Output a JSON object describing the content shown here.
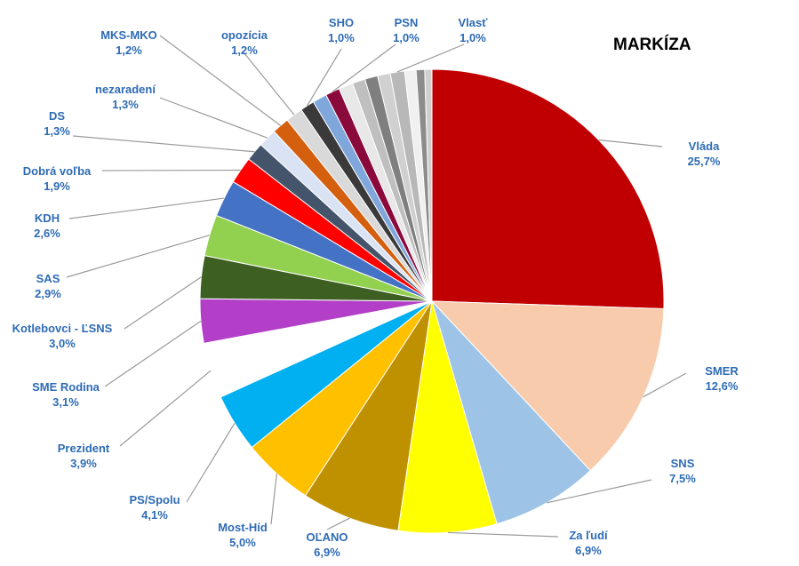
{
  "chart_data": {
    "type": "pie",
    "title": "MARKÍZA",
    "slices": [
      {
        "label": "Vláda",
        "value": 25.7,
        "text": "25,7%",
        "color": "#c00000"
      },
      {
        "label": "SMER",
        "value": 12.6,
        "text": "12,6%",
        "color": "#f8cbad"
      },
      {
        "label": "SNS",
        "value": 7.5,
        "text": "7,5%",
        "color": "#9dc3e6"
      },
      {
        "label": "Za ľudí",
        "value": 6.9,
        "text": "6,9%",
        "color": "#ffff00"
      },
      {
        "label": "OĽANO",
        "value": 6.9,
        "text": "6,9%",
        "color": "#bf9000"
      },
      {
        "label": "Most-Híd",
        "value": 5.0,
        "text": "5,0%",
        "color": "#ffc000"
      },
      {
        "label": "PS/Spolu",
        "value": 4.1,
        "text": "4,1%",
        "color": "#00b0f0"
      },
      {
        "label": "Prezident",
        "value": 3.9,
        "text": "3,9%",
        "color": "#ffffff"
      },
      {
        "label": "SME Rodina",
        "value": 3.1,
        "text": "3,1%",
        "color": "#b33fc8"
      },
      {
        "label": "Kotlebovci - ĽSNS",
        "value": 3.0,
        "text": "3,0%",
        "color": "#3d5f22"
      },
      {
        "label": "SAS",
        "value": 2.9,
        "text": "2,9%",
        "color": "#92d050"
      },
      {
        "label": "KDH",
        "value": 2.6,
        "text": "2,6%",
        "color": "#4472c4"
      },
      {
        "label": "Dobrá voľba",
        "value": 1.9,
        "text": "1,9%",
        "color": "#ff0000"
      },
      {
        "label": "DS",
        "value": 1.3,
        "text": "1,3%",
        "color": "#44546a"
      },
      {
        "label": "nezaradení",
        "value": 1.3,
        "text": "1,3%",
        "color": "#dae3f3"
      },
      {
        "label": "MKS-MKO",
        "value": 1.2,
        "text": "1,2%",
        "color": "#d45f0f"
      },
      {
        "label": "opozícia",
        "value": 1.2,
        "text": "1,2%",
        "color": "#d9d9d9"
      },
      {
        "label": "SHO",
        "value": 1.0,
        "text": "1,0%",
        "color": "#3a3a3a"
      },
      {
        "label": "",
        "value": 1.0,
        "text": "",
        "color": "#7fa7dc"
      },
      {
        "label": "PSN",
        "value": 1.0,
        "text": "1,0%",
        "color": "#8b0a3c"
      },
      {
        "label": "",
        "value": 1.0,
        "text": "",
        "color": "#e8e8e8"
      },
      {
        "label": "",
        "value": 0.9,
        "text": "",
        "color": "#bfbfbf"
      },
      {
        "label": "",
        "value": 0.9,
        "text": "",
        "color": "#7f7f7f"
      },
      {
        "label": "",
        "value": 0.9,
        "text": "",
        "color": "#d0d0d0"
      },
      {
        "label": "Vlasť",
        "value": 1.0,
        "text": "1,0%",
        "color": "#b8b8b8"
      },
      {
        "label": "",
        "value": 0.8,
        "text": "",
        "color": "#f0f0f0"
      },
      {
        "label": "",
        "value": 0.6,
        "text": "",
        "color": "#8c8c8c"
      },
      {
        "label": "",
        "value": 0.5,
        "text": "",
        "color": "#cfcfcf"
      }
    ]
  }
}
